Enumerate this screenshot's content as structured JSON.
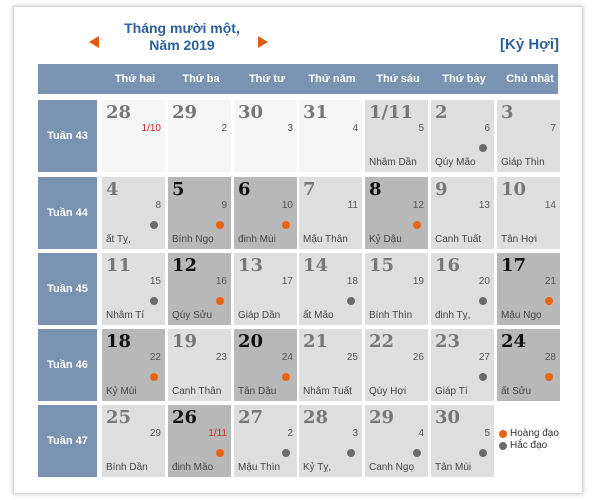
{
  "title_line1": "Tháng mười một,",
  "title_line2": "Năm 2019",
  "year_name": "[Kỷ Hợi]",
  "weekdays": [
    "Thứ hai",
    "Thứ ba",
    "Thứ tư",
    "Thứ năm",
    "Thứ sáu",
    "Thứ bảy",
    "Chủ nhật"
  ],
  "weeks": [
    {
      "label": "Tuần 43",
      "days": [
        {
          "solar": "28",
          "lunar": "1/10",
          "canchi": "",
          "marker": "",
          "bg": "white",
          "dark": false,
          "lunar_red": true
        },
        {
          "solar": "29",
          "lunar": "2",
          "canchi": "",
          "marker": "",
          "bg": "white",
          "dark": false
        },
        {
          "solar": "30",
          "lunar": "3",
          "canchi": "",
          "marker": "",
          "bg": "white",
          "dark": false
        },
        {
          "solar": "31",
          "lunar": "4",
          "canchi": "",
          "marker": "",
          "bg": "white",
          "dark": false
        },
        {
          "solar": "1/11",
          "lunar": "5",
          "canchi": "Nhâm Dần",
          "marker": "",
          "bg": "light",
          "dark": false
        },
        {
          "solar": "2",
          "lunar": "6",
          "canchi": "Qúy Mão",
          "marker": "bad",
          "bg": "light",
          "dark": false
        },
        {
          "solar": "3",
          "lunar": "7",
          "canchi": "Giáp Thìn",
          "marker": "",
          "bg": "light",
          "dark": false
        }
      ]
    },
    {
      "label": "Tuần 44",
      "days": [
        {
          "solar": "4",
          "lunar": "8",
          "canchi": "ất Tỵ,",
          "marker": "bad",
          "bg": "light",
          "dark": false
        },
        {
          "solar": "5",
          "lunar": "9",
          "canchi": "Bính Ngọ",
          "marker": "good",
          "bg": "shade",
          "dark": true
        },
        {
          "solar": "6",
          "lunar": "10",
          "canchi": "đinh Mùi",
          "marker": "good",
          "bg": "shade",
          "dark": true
        },
        {
          "solar": "7",
          "lunar": "11",
          "canchi": "Mậu Thân",
          "marker": "",
          "bg": "light",
          "dark": false
        },
        {
          "solar": "8",
          "lunar": "12",
          "canchi": "Kỷ Dậu",
          "marker": "good",
          "bg": "shade",
          "dark": true
        },
        {
          "solar": "9",
          "lunar": "13",
          "canchi": "Canh Tuất",
          "marker": "",
          "bg": "light",
          "dark": false
        },
        {
          "solar": "10",
          "lunar": "14",
          "canchi": "Tân Hợi",
          "marker": "",
          "bg": "light",
          "dark": false
        }
      ]
    },
    {
      "label": "Tuần 45",
      "days": [
        {
          "solar": "11",
          "lunar": "15",
          "canchi": "Nhâm Tí",
          "marker": "bad",
          "bg": "light",
          "dark": false
        },
        {
          "solar": "12",
          "lunar": "16",
          "canchi": "Qúy Sửu",
          "marker": "good",
          "bg": "shade",
          "dark": true
        },
        {
          "solar": "13",
          "lunar": "17",
          "canchi": "Giáp Dần",
          "marker": "",
          "bg": "light",
          "dark": false
        },
        {
          "solar": "14",
          "lunar": "18",
          "canchi": "ất Mão",
          "marker": "bad",
          "bg": "light",
          "dark": false
        },
        {
          "solar": "15",
          "lunar": "19",
          "canchi": "Bính Thìn",
          "marker": "",
          "bg": "light",
          "dark": false
        },
        {
          "solar": "16",
          "lunar": "20",
          "canchi": "đinh Tỵ,",
          "marker": "bad",
          "bg": "light",
          "dark": false
        },
        {
          "solar": "17",
          "lunar": "21",
          "canchi": "Mậu Ngọ",
          "marker": "good",
          "bg": "shade",
          "dark": true
        }
      ]
    },
    {
      "label": "Tuần 46",
      "days": [
        {
          "solar": "18",
          "lunar": "22",
          "canchi": "Kỷ Mùi",
          "marker": "good",
          "bg": "shade",
          "dark": true
        },
        {
          "solar": "19",
          "lunar": "23",
          "canchi": "Canh Thân",
          "marker": "",
          "bg": "light",
          "dark": false
        },
        {
          "solar": "20",
          "lunar": "24",
          "canchi": "Tân Dậu",
          "marker": "good",
          "bg": "shade",
          "dark": true
        },
        {
          "solar": "21",
          "lunar": "25",
          "canchi": "Nhâm Tuất",
          "marker": "",
          "bg": "light",
          "dark": false
        },
        {
          "solar": "22",
          "lunar": "26",
          "canchi": "Qúy Hợi",
          "marker": "",
          "bg": "light",
          "dark": false
        },
        {
          "solar": "23",
          "lunar": "27",
          "canchi": "Giáp Tí",
          "marker": "bad",
          "bg": "light",
          "dark": false
        },
        {
          "solar": "24",
          "lunar": "28",
          "canchi": "ất Sửu",
          "marker": "good",
          "bg": "shade",
          "dark": true
        }
      ]
    },
    {
      "label": "Tuần 47",
      "days": [
        {
          "solar": "25",
          "lunar": "29",
          "canchi": "Bính Dần",
          "marker": "",
          "bg": "light",
          "dark": false
        },
        {
          "solar": "26",
          "lunar": "1/11",
          "canchi": "đinh Mão",
          "marker": "good",
          "bg": "shade",
          "dark": true,
          "lunar_red": true
        },
        {
          "solar": "27",
          "lunar": "2",
          "canchi": "Mậu Thìn",
          "marker": "bad",
          "bg": "light",
          "dark": false
        },
        {
          "solar": "28",
          "lunar": "3",
          "canchi": "Kỷ Tỵ,",
          "marker": "bad",
          "bg": "light",
          "dark": false
        },
        {
          "solar": "29",
          "lunar": "4",
          "canchi": "Canh Ngọ",
          "marker": "bad",
          "bg": "light",
          "dark": false
        },
        {
          "solar": "30",
          "lunar": "5",
          "canchi": "Tân Mùi",
          "marker": "bad",
          "bg": "light",
          "dark": false
        }
      ]
    }
  ],
  "legend": {
    "good": "Hoàng đạo",
    "bad": "Hắc đạo"
  },
  "colors": {
    "header": "#7b93b3",
    "title": "#2d5f9a",
    "arrow": "#e05a12",
    "good_dot": "#e8640f",
    "bad_dot": "#6b6b6b"
  }
}
